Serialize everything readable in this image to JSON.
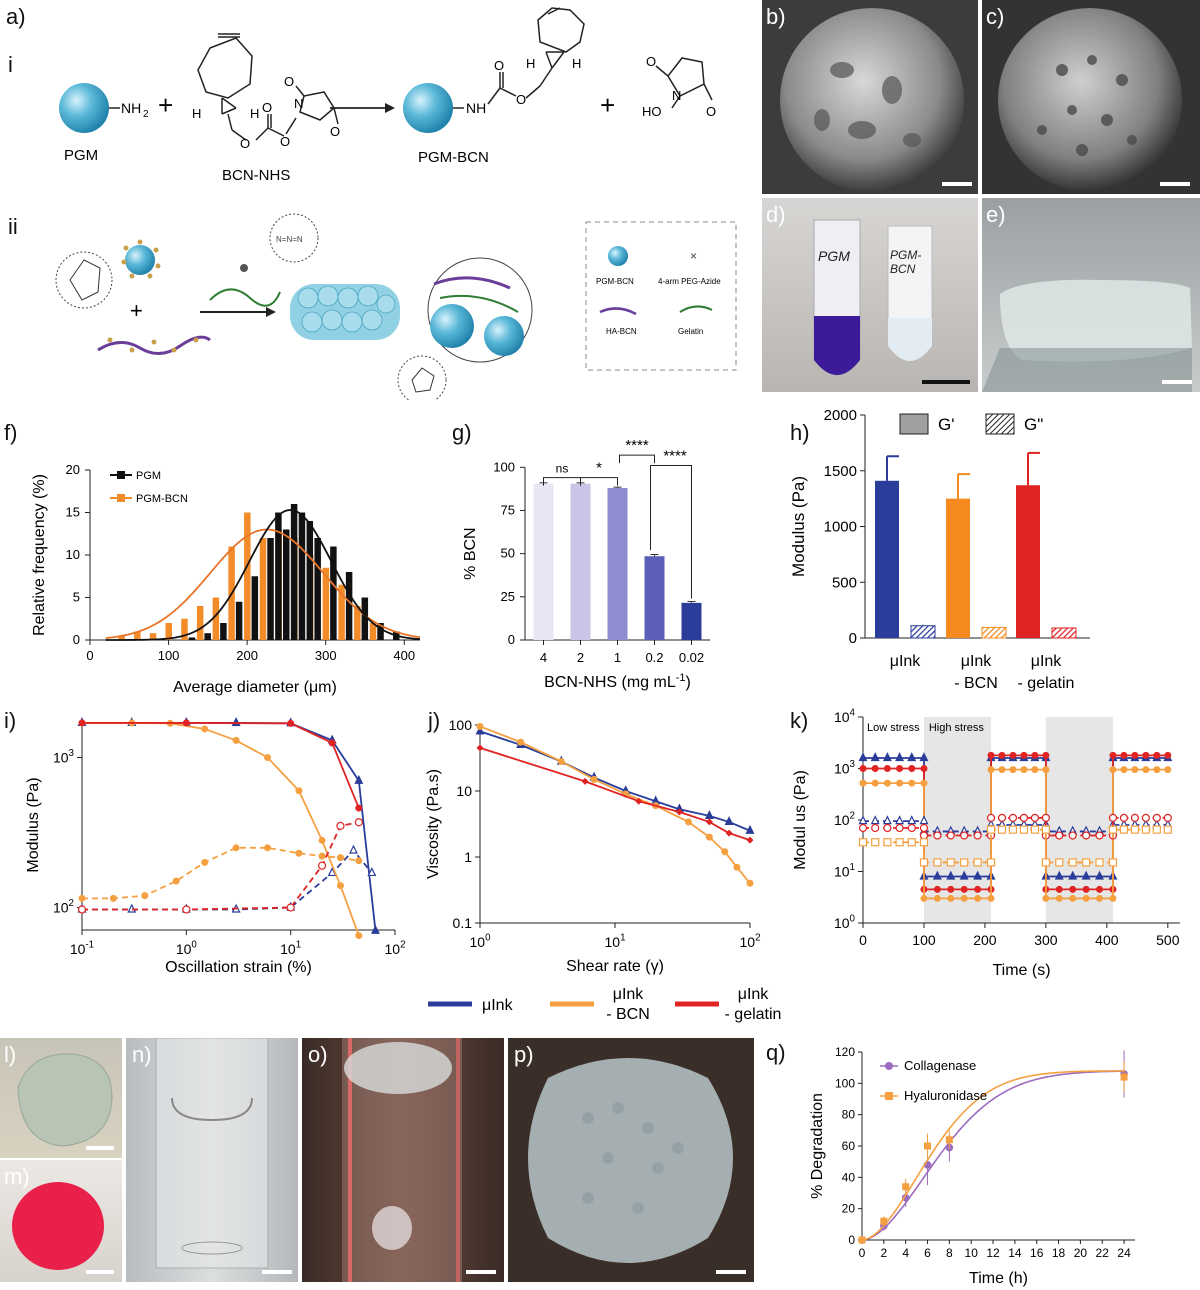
{
  "panel_labels": {
    "a": "a)",
    "i": "i",
    "ii": "ii",
    "b": "b)",
    "c": "c)",
    "d": "d)",
    "e": "e)",
    "f": "f)",
    "g": "g)",
    "h": "h)",
    "i_chart": "i)",
    "j": "j)",
    "k": "k)",
    "l": "l)",
    "m": "m)",
    "n": "n)",
    "o": "o)",
    "p": "p)",
    "q": "q)"
  },
  "scheme_i": {
    "pgm_label": "PGM",
    "nh2": "NH",
    "nh2_sub": "2",
    "bcn_nhs_label": "BCN-NHS",
    "pgm_bcn_label": "PGM-BCN",
    "nh": "NH",
    "plus": "+",
    "o1": "O",
    "o2": "O",
    "o3": "O",
    "o4": "O",
    "n": "N",
    "h1": "H",
    "h2": "H",
    "h3": "H",
    "h4": "H",
    "ho": "HO",
    "o5": "O",
    "o6": "O",
    "n2": "N",
    "o7": "O"
  },
  "scheme_ii": {
    "legend": [
      {
        "label": "PGM-BCN"
      },
      {
        "label": "4-arm PEG-Azide"
      },
      {
        "label": "HA-BCN"
      },
      {
        "label": "Gelatin"
      }
    ],
    "azide": "N=N=N"
  },
  "photos": {
    "d_tube1": "PGM",
    "d_tube2": "PGM-BCN"
  },
  "charts": {
    "f": {
      "type": "bar",
      "xlabel": "Average diameter (μm)",
      "ylabel": "Relative frequency (%)",
      "xticks": [
        "0",
        "100",
        "200",
        "300",
        "400"
      ],
      "yticks": [
        "0",
        "5",
        "10",
        "15",
        "20"
      ],
      "xlim": [
        0,
        420
      ],
      "ylim": [
        0,
        20
      ],
      "legend": [
        "PGM",
        "PGM-BCN"
      ],
      "colors": {
        "PGM": "#111111",
        "PGM-BCN": "#f28c28"
      },
      "pgm_bcn_bars": [
        [
          45,
          0.5
        ],
        [
          65,
          1.0
        ],
        [
          85,
          0.8
        ],
        [
          105,
          2.0
        ],
        [
          125,
          2.5
        ],
        [
          145,
          4.0
        ],
        [
          165,
          5.0
        ],
        [
          185,
          11.0
        ],
        [
          205,
          15.0
        ],
        [
          225,
          12.0
        ],
        [
          245,
          13.0
        ],
        [
          265,
          12.0
        ],
        [
          285,
          10.0
        ],
        [
          305,
          8.5
        ],
        [
          325,
          6.5
        ],
        [
          345,
          4.0
        ],
        [
          365,
          2.0
        ]
      ],
      "pgm_bars": [
        [
          125,
          0.3
        ],
        [
          145,
          0.8
        ],
        [
          165,
          2.0
        ],
        [
          185,
          4.5
        ],
        [
          205,
          7.5
        ],
        [
          225,
          12.0
        ],
        [
          235,
          15.0
        ],
        [
          245,
          13.0
        ],
        [
          255,
          16.0
        ],
        [
          265,
          15.0
        ],
        [
          275,
          14.0
        ],
        [
          285,
          12.0
        ],
        [
          305,
          11.0
        ],
        [
          325,
          8.0
        ],
        [
          345,
          5.0
        ],
        [
          365,
          2.0
        ],
        [
          385,
          1.0
        ]
      ],
      "pgm_fit": {
        "mu": 255,
        "sigma": 52,
        "amp": 15.3
      },
      "pgm_bcn_fit": {
        "mu": 225,
        "sigma": 72,
        "amp": 13.0
      }
    },
    "g": {
      "type": "bar",
      "xlabel": "BCN-NHS (mg mL",
      "xlabel_sup": "-1",
      "xlabel_end": ")",
      "ylabel": "% BCN",
      "categories": [
        "4",
        "2",
        "1",
        "0.2",
        "0.02"
      ],
      "values": [
        90.5,
        90.5,
        88.0,
        48.5,
        21.5
      ],
      "errors": [
        0.5,
        0.5,
        0.5,
        1.0,
        0.8
      ],
      "yticks": [
        "0",
        "25",
        "50",
        "75",
        "100"
      ],
      "ylim": [
        0,
        110
      ],
      "colors": [
        "#e8e6f4",
        "#c9c5e6",
        "#8f8dcf",
        "#5b5fb8",
        "#2b3d9a"
      ],
      "significance": [
        "ns",
        "*",
        "****",
        "****"
      ]
    },
    "h": {
      "type": "bar",
      "ylabel": "Modulus (Pa)",
      "yticks": [
        "0",
        "500",
        "1000",
        "1500",
        "2000"
      ],
      "ylim": [
        0,
        2000
      ],
      "legend": [
        "G'",
        "G\""
      ],
      "groups": [
        {
          "line1": "μInk",
          "line2": "",
          "gp": 1410,
          "gp_err": 220,
          "gpp": 110,
          "gpp_err": 10,
          "color": "#2b3d9a"
        },
        {
          "line1": "μInk",
          "line2": "- BCN",
          "gp": 1250,
          "gp_err": 220,
          "gpp": 95,
          "gpp_err": 8,
          "color": "#f58b1f"
        },
        {
          "line1": "μInk",
          "line2": "- gelatin",
          "gp": 1370,
          "gp_err": 290,
          "gpp": 90,
          "gpp_err": 8,
          "color": "#e02424"
        }
      ]
    },
    "i": {
      "type": "line",
      "xlabel": "Oscillation strain (%)",
      "ylabel": "Modulus (Pa)",
      "xticks": [
        {
          "b": "10",
          "e": "-1"
        },
        {
          "b": "10",
          "e": "0"
        },
        {
          "b": "10",
          "e": "1"
        },
        {
          "b": "10",
          "e": "2"
        }
      ],
      "yticks": [
        {
          "b": "10",
          "e": "2"
        },
        {
          "b": "10",
          "e": "3"
        }
      ],
      "xlim_log": [
        -1,
        2
      ],
      "ylim_log": [
        1.85,
        3.25
      ],
      "series": [
        {
          "key": "blue_gp",
          "color": "#2b3d9a",
          "dash": false,
          "marker": "tri",
          "points": [
            [
              0.1,
              1700
            ],
            [
              0.3,
              1700
            ],
            [
              1,
              1700
            ],
            [
              3,
              1700
            ],
            [
              10,
              1690
            ],
            [
              25,
              1300
            ],
            [
              45,
              700
            ],
            [
              65,
              70
            ]
          ]
        },
        {
          "key": "blue_gpp",
          "color": "#2b3d9a",
          "dash": true,
          "marker": "tri-open",
          "points": [
            [
              0.1,
              97
            ],
            [
              0.3,
              97
            ],
            [
              1,
              97
            ],
            [
              3,
              97
            ],
            [
              10,
              100
            ],
            [
              25,
              170
            ],
            [
              40,
              240
            ],
            [
              60,
              170
            ]
          ]
        },
        {
          "key": "orange_gp",
          "color": "#f5a040",
          "dash": false,
          "marker": "circ",
          "points": [
            [
              0.1,
              1700
            ],
            [
              0.3,
              1700
            ],
            [
              0.7,
              1690
            ],
            [
              1.5,
              1550
            ],
            [
              3,
              1300
            ],
            [
              6,
              1000
            ],
            [
              12,
              600
            ],
            [
              20,
              280
            ],
            [
              30,
              140
            ],
            [
              45,
              65
            ]
          ]
        },
        {
          "key": "orange_gpp",
          "color": "#f5a040",
          "dash": true,
          "marker": "circ",
          "points": [
            [
              0.1,
              115
            ],
            [
              0.2,
              115
            ],
            [
              0.4,
              120
            ],
            [
              0.8,
              150
            ],
            [
              1.5,
              200
            ],
            [
              3,
              250
            ],
            [
              6,
              250
            ],
            [
              12,
              230
            ],
            [
              20,
              220
            ],
            [
              30,
              215
            ],
            [
              45,
              205
            ]
          ]
        },
        {
          "key": "red_gp",
          "color": "#e02424",
          "dash": false,
          "marker": "circ",
          "points": [
            [
              0.1,
              1700
            ],
            [
              1,
              1700
            ],
            [
              10,
              1690
            ],
            [
              25,
              1250
            ],
            [
              45,
              460
            ]
          ]
        },
        {
          "key": "red_gpp",
          "color": "#e02424",
          "dash": true,
          "marker": "circ-open",
          "points": [
            [
              0.1,
              97
            ],
            [
              1,
              97
            ],
            [
              10,
              100
            ],
            [
              20,
              190
            ],
            [
              30,
              350
            ],
            [
              45,
              370
            ]
          ]
        }
      ]
    },
    "j": {
      "type": "line",
      "xlabel": "Shear rate (γ)",
      "ylabel": "Viscosity (Pa.s)",
      "xticks": [
        {
          "b": "10",
          "e": "0"
        },
        {
          "b": "10",
          "e": "1"
        },
        {
          "b": "10",
          "e": "2"
        }
      ],
      "yticks": [
        "0.1",
        "1",
        "10",
        "100"
      ],
      "xlim_log": [
        0,
        2
      ],
      "ylim_log": [
        -1,
        2
      ],
      "series": [
        {
          "key": "blue",
          "color": "#2b3d9a",
          "marker": "tri",
          "points": [
            [
              1,
              80
            ],
            [
              2,
              50
            ],
            [
              4,
              28
            ],
            [
              7,
              16
            ],
            [
              12,
              10
            ],
            [
              20,
              7
            ],
            [
              30,
              5.3
            ],
            [
              50,
              4.2
            ],
            [
              70,
              3.4
            ],
            [
              100,
              2.5
            ]
          ]
        },
        {
          "key": "orange",
          "color": "#f5a040",
          "marker": "circ",
          "points": [
            [
              1,
              95
            ],
            [
              2,
              55
            ],
            [
              4,
              28
            ],
            [
              7,
              15
            ],
            [
              12,
              9
            ],
            [
              20,
              6
            ],
            [
              35,
              3.4
            ],
            [
              50,
              2
            ],
            [
              65,
              1.2
            ],
            [
              80,
              0.7
            ],
            [
              100,
              0.4
            ]
          ]
        },
        {
          "key": "red",
          "color": "#e02424",
          "marker": "diamond",
          "points": [
            [
              1,
              45
            ],
            [
              6,
              14
            ],
            [
              15,
              7
            ],
            [
              30,
              4.8
            ],
            [
              50,
              3.4
            ],
            [
              70,
              2.3
            ],
            [
              100,
              1.8
            ]
          ]
        }
      ]
    },
    "k": {
      "type": "line",
      "xlabel": "Time (s)",
      "ylabel": "Modul us (Pa)",
      "xticks": [
        "0",
        "100",
        "200",
        "300",
        "400",
        "500"
      ],
      "yticks": [
        {
          "b": "10",
          "e": "0"
        },
        {
          "b": "10",
          "e": "1"
        },
        {
          "b": "10",
          "e": "2"
        },
        {
          "b": "10",
          "e": "3"
        },
        {
          "b": "10",
          "e": "4"
        }
      ],
      "xlim": [
        0,
        520
      ],
      "ylim_log": [
        0,
        4
      ],
      "shaded": [
        [
          100,
          210
        ],
        [
          300,
          410
        ]
      ],
      "annotations": [
        "Low stress",
        "High stress"
      ],
      "levels": {
        "blue_gp": [
          1600,
          8
        ],
        "blue_gpp": [
          95,
          60
        ],
        "red_gp": [
          1000,
          4.5
        ],
        "red_gpp": [
          70,
          50
        ],
        "orange_gp": [
          520,
          3
        ],
        "orange_gpp": [
          37,
          55
        ],
        "orange_gpp_high": 15,
        "red_gp_high2": 6
      },
      "late": {
        "blue_gp": 1600,
        "red_gp": 1800,
        "orange_gp": 950,
        "blue_gpp": 80,
        "red_gpp": 110,
        "orange_gpp": 65
      }
    },
    "q": {
      "type": "line",
      "xlabel": "Time (h)",
      "ylabel": "% Degradation",
      "xticks": [
        "0",
        "2",
        "4",
        "6",
        "8",
        "10",
        "12",
        "14",
        "16",
        "18",
        "20",
        "22",
        "24"
      ],
      "yticks": [
        "0",
        "20",
        "40",
        "60",
        "80",
        "100",
        "120"
      ],
      "xlim": [
        0,
        25
      ],
      "ylim": [
        0,
        120
      ],
      "series": [
        {
          "name": "Collagenase",
          "color": "#9b6bbf",
          "points": [
            [
              0,
              0
            ],
            [
              2,
              9
            ],
            [
              4,
              27
            ],
            [
              6,
              48
            ],
            [
              8,
              59
            ],
            [
              24,
              106
            ]
          ],
          "errors": [
            0,
            3,
            6,
            13,
            9,
            15
          ]
        },
        {
          "name": "Hyaluronidase",
          "color": "#f5a040",
          "points": [
            [
              0,
              0
            ],
            [
              2,
              12
            ],
            [
              4,
              34
            ],
            [
              6,
              60
            ],
            [
              8,
              64
            ],
            [
              24,
              104
            ]
          ],
          "errors": [
            0,
            3,
            5,
            8,
            6,
            10
          ]
        }
      ]
    }
  },
  "shared_legend": [
    {
      "line1": "μInk",
      "line2": "",
      "color": "#2b3d9a"
    },
    {
      "line1": "μInk",
      "line2": "- BCN",
      "color": "#f5a040"
    },
    {
      "line1": "μInk",
      "line2": "- gelatin",
      "color": "#e02424"
    }
  ]
}
